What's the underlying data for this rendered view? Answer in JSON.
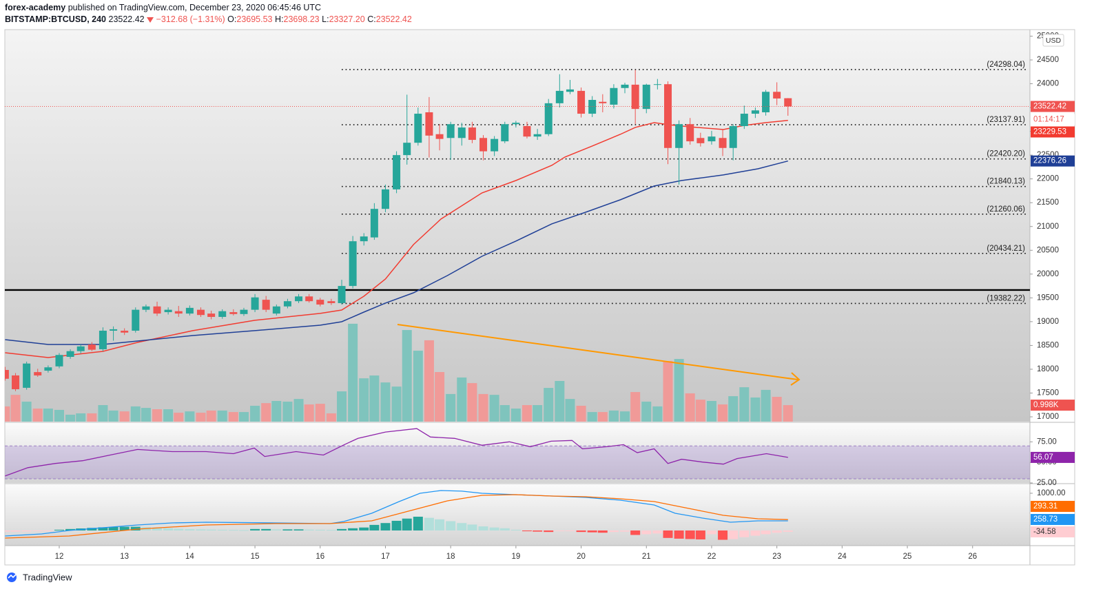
{
  "header": {
    "author": "forex-academy",
    "published": "published on TradingView.com, December 23, 2020 06:45:46 UTC",
    "symbol": "BITSTAMP:BTCUSD, 240",
    "price": "23522.42",
    "change": "−312.68 (−1.31%)",
    "o": "O:",
    "open": "23695.53",
    "h": "H:",
    "high": "23698.23",
    "l": "L:",
    "low": "23327.20",
    "c": "C:",
    "close": "23522.42",
    "currency": "USD",
    "countdown": "01:14:17",
    "brand": "TradingView"
  },
  "chart_data": [
    {
      "type": "candlestick",
      "x": [
        11.17,
        11.33,
        11.5,
        11.67,
        11.83,
        12,
        12.17,
        12.33,
        12.5,
        12.67,
        12.83,
        13,
        13.17,
        13.33,
        13.5,
        13.67,
        13.83,
        14,
        14.17,
        14.33,
        14.5,
        14.67,
        14.83,
        15,
        15.17,
        15.33,
        15.5,
        15.67,
        15.83,
        16,
        16.17,
        16.33,
        16.5,
        16.67,
        16.83,
        17,
        17.17,
        17.33,
        17.5,
        17.67,
        17.83,
        18,
        18.17,
        18.33,
        18.5,
        18.67,
        18.83,
        19,
        19.17,
        19.33,
        19.5,
        19.67,
        19.83,
        20,
        20.17,
        20.33,
        20.5,
        20.67,
        20.83,
        21,
        21.17,
        21.33,
        21.5,
        21.67,
        21.83,
        22,
        22.17,
        22.33,
        22.5,
        22.67,
        22.83,
        23,
        23.17
      ],
      "open": [
        17985,
        17870,
        17610,
        17940,
        17970,
        18060,
        18260,
        18380,
        18520,
        18420,
        18810,
        18810,
        18810,
        19250,
        19320,
        19200,
        19220,
        19170,
        19250,
        19170,
        19100,
        19200,
        19160,
        19250,
        19460,
        19170,
        19320,
        19430,
        19530,
        19460,
        19430,
        19390,
        19750,
        20690,
        20770,
        21370,
        21780,
        22500,
        22760,
        23400,
        22940,
        22860,
        22860,
        23080,
        22860,
        22580,
        22790,
        23150,
        23110,
        22890,
        22940,
        23590,
        23830,
        23850,
        23370,
        23620,
        23560,
        23910,
        23980,
        23470,
        23980,
        23990,
        22650,
        23150,
        22860,
        22790,
        22860,
        22650,
        23110,
        23370,
        23400,
        23830,
        23695.53
      ],
      "high": [
        18050,
        17920,
        18160,
        18010,
        18080,
        18340,
        18420,
        18520,
        18570,
        18880,
        18900,
        18860,
        19300,
        19360,
        19420,
        19300,
        19330,
        19340,
        19300,
        19230,
        19260,
        19260,
        19290,
        19580,
        19540,
        19360,
        19480,
        19580,
        19580,
        19500,
        19480,
        19880,
        20800,
        20860,
        21490,
        21880,
        22580,
        23770,
        23500,
        23720,
        23150,
        23200,
        23180,
        23200,
        22920,
        22900,
        23200,
        23220,
        23200,
        23050,
        23680,
        24200,
        24080,
        23920,
        23740,
        23780,
        23990,
        24020,
        24290,
        24000,
        24100,
        24050,
        23230,
        23280,
        22970,
        23010,
        23030,
        23150,
        23540,
        23500,
        23870,
        24030,
        23698.23
      ],
      "low": [
        17760,
        17540,
        17570,
        17840,
        17930,
        18020,
        18220,
        18330,
        18380,
        18380,
        18600,
        18720,
        18770,
        19200,
        19120,
        19150,
        19100,
        19130,
        19100,
        19050,
        19060,
        19130,
        19120,
        19200,
        19200,
        19130,
        19280,
        19390,
        19400,
        19320,
        19350,
        19360,
        19700,
        20600,
        20720,
        21300,
        21700,
        22300,
        22700,
        22450,
        22600,
        22400,
        22700,
        22750,
        22390,
        22480,
        22750,
        23080,
        22850,
        22820,
        22900,
        23500,
        23780,
        23290,
        23300,
        23400,
        23480,
        23800,
        23150,
        23380,
        23880,
        22310,
        21880,
        22720,
        22680,
        22720,
        22480,
        22390,
        23050,
        23280,
        23330,
        23550,
        23327.2
      ],
      "close": [
        17800,
        17580,
        18120,
        17870,
        18040,
        18300,
        18380,
        18480,
        18410,
        18810,
        18840,
        18770,
        19250,
        19320,
        19170,
        19250,
        19170,
        19290,
        19140,
        19100,
        19220,
        19160,
        19250,
        19510,
        19250,
        19320,
        19430,
        19530,
        19430,
        19360,
        19390,
        19750,
        20690,
        20790,
        21370,
        21780,
        22500,
        22760,
        23370,
        22910,
        22840,
        23150,
        23080,
        22820,
        22580,
        22840,
        23150,
        23180,
        22890,
        22940,
        23590,
        23850,
        23880,
        23370,
        23660,
        23590,
        23910,
        23980,
        23470,
        23980,
        23990,
        22650,
        23150,
        22790,
        22750,
        22890,
        22650,
        23110,
        23370,
        23440,
        23830,
        23690,
        23522.42
      ],
      "volume": [
        920,
        1620,
        1210,
        790,
        790,
        710,
        420,
        500,
        500,
        1000,
        670,
        620,
        920,
        830,
        750,
        750,
        540,
        620,
        540,
        670,
        670,
        580,
        580,
        960,
        1120,
        1250,
        1210,
        1370,
        1040,
        1080,
        500,
        1830,
        5920,
        2620,
        2790,
        2370,
        2120,
        5540,
        4290,
        4920,
        3000,
        1670,
        2670,
        2330,
        1670,
        1620,
        1000,
        790,
        1000,
        1000,
        2040,
        2460,
        1370,
        960,
        580,
        580,
        670,
        620,
        1790,
        1210,
        920,
        3670,
        3790,
        1710,
        1330,
        1250,
        1040,
        1540,
        2080,
        1460,
        1920,
        1500,
        998
      ],
      "volume_value_label": "0.998K",
      "up_color": "#26a69a",
      "down_color": "#ef5350",
      "volume_up_color": "#7fc4bd",
      "volume_down_color": "#f09a98",
      "series": [
        {
          "color": "#f23b30",
          "x": [
            11.17,
            11.83,
            12.67,
            13.2,
            14.05,
            15,
            16,
            16.33,
            16.67,
            17,
            17.43,
            17.85,
            18.48,
            19,
            19.55,
            19.75,
            20.17,
            20.6,
            20.83,
            21.12,
            21.33,
            21.65,
            22.18,
            22.5,
            22.83,
            23.17
          ],
          "values": [
            18347,
            18246,
            18376,
            18564,
            18811,
            19028,
            19173,
            19245,
            19534,
            19896,
            20620,
            21156,
            21706,
            21967,
            22285,
            22459,
            22691,
            22937,
            23082,
            23183,
            23140,
            23096,
            23038,
            23125,
            23183,
            23229.53
          ]
        },
        {
          "color": "#1f3f96",
          "x": [
            11.17,
            11.83,
            12.67,
            13.2,
            14.05,
            15,
            16,
            16.33,
            16.67,
            17,
            17.43,
            17.95,
            18.48,
            19,
            19.55,
            20.07,
            20.6,
            21.12,
            21.54,
            22.18,
            22.71,
            23.17
          ],
          "values": [
            18622,
            18521,
            18521,
            18593,
            18709,
            18811,
            18926,
            18999,
            19201,
            19390,
            19607,
            19969,
            20374,
            20693,
            21055,
            21301,
            21561,
            21851,
            21967,
            22083,
            22213,
            22376.26
          ]
        }
      ],
      "levels": [
        {
          "value": 24298.04,
          "label": "(24298.04)"
        },
        {
          "value": 23137.91,
          "label": "(23137.91)"
        },
        {
          "value": 22420.2,
          "label": "(22420.20)"
        },
        {
          "value": 21840.13,
          "label": "(21840.13)"
        },
        {
          "value": 21260.06,
          "label": "(21260.06)"
        },
        {
          "value": 20434.21,
          "label": "(20434.21)"
        },
        {
          "value": 19382.22,
          "label": "(19382.22)"
        }
      ],
      "levels_start": 16.33,
      "hline": 19665,
      "xlim": [
        11.166,
        26.879
      ],
      "xticks": [
        12,
        13,
        14,
        15,
        16,
        17,
        18,
        19,
        20,
        21,
        22,
        23,
        24,
        25,
        26
      ],
      "ylim": [
        16899,
        25137
      ],
      "yticks": [
        17000,
        17500,
        18000,
        18500,
        19000,
        19500,
        20000,
        20500,
        21000,
        21500,
        22000,
        22500,
        23000,
        23500,
        24000,
        24500,
        25000
      ]
    },
    {
      "type": "line",
      "color": "#8e24aa",
      "band": [
        30,
        70
      ],
      "x": [
        11.17,
        11.52,
        11.94,
        12.36,
        12.78,
        13.2,
        13.73,
        14.25,
        14.67,
        14.99,
        15.15,
        15.63,
        16.05,
        16.37,
        16.58,
        17,
        17.48,
        17.69,
        18.06,
        18.48,
        18.9,
        19.22,
        19.54,
        19.86,
        20.02,
        20.39,
        20.65,
        20.86,
        21.12,
        21.33,
        21.54,
        21.86,
        22.18,
        22.39,
        22.84,
        23.17
      ],
      "values": [
        33.5,
        43.6,
        48.7,
        52.1,
        58.9,
        65.7,
        63.1,
        63.1,
        60.6,
        67.4,
        57.2,
        63.1,
        58.9,
        71.6,
        79.2,
        86.9,
        91.1,
        80.9,
        79.2,
        70.8,
        75,
        69.1,
        75.8,
        76.7,
        66.5,
        69.1,
        71.6,
        61.9,
        66.5,
        48.7,
        53.8,
        50.4,
        47.9,
        54.7,
        60.6,
        56.07
      ],
      "ylim": [
        25,
        97.9
      ],
      "yticks": [
        {
          "value": 25,
          "label": "25.00"
        },
        {
          "value": 50,
          "label": "50.00"
        },
        {
          "value": 75,
          "label": "75.00"
        }
      ]
    },
    {
      "type": "macd",
      "series": [
        {
          "color": "#2196f3",
          "x": [
            11.17,
            11.73,
            12.15,
            12.67,
            13.2,
            13.73,
            14.25,
            15.31,
            16.15,
            16.36,
            16.79,
            17.21,
            17.53,
            17.85,
            18.17,
            18.48,
            19,
            19.55,
            20.07,
            20.6,
            21.12,
            21.44,
            21.86,
            22.29,
            22.71,
            23.17
          ],
          "values": [
            -148,
            -93,
            0,
            74,
            148,
            204,
            222,
            204,
            185,
            241,
            463,
            778,
            1000,
            1074,
            1056,
            1000,
            963,
            926,
            889,
            815,
            685,
            463,
            333,
            222,
            259,
            258.73
          ]
        },
        {
          "color": "#ff6d00",
          "x": [
            11.17,
            12.15,
            13.2,
            14.25,
            15.31,
            16.15,
            16.79,
            17.43,
            17.95,
            18.48,
            19,
            19.55,
            20.07,
            20.6,
            21.12,
            21.65,
            22.18,
            22.71,
            23.17
          ],
          "values": [
            -204,
            -148,
            37,
            148,
            185,
            185,
            259,
            556,
            796,
            944,
            963,
            926,
            907,
            852,
            778,
            593,
            407,
            315,
            293.31
          ]
        }
      ],
      "histogram": [
        -30,
        -30,
        -25,
        -10,
        -8,
        20,
        40,
        55,
        70,
        85,
        95,
        100,
        100,
        90,
        80,
        60,
        45,
        35,
        30,
        25,
        20,
        15,
        10,
        40,
        40,
        30,
        30,
        30,
        25,
        20,
        15,
        40,
        60,
        80,
        150,
        200,
        260,
        320,
        370,
        340,
        300,
        250,
        200,
        160,
        110,
        80,
        60,
        20,
        -20,
        -30,
        -40,
        -20,
        -10,
        -40,
        -50,
        -60,
        -40,
        -30,
        -120,
        -100,
        -80,
        -200,
        -220,
        -230,
        -240,
        -100,
        -250,
        -230,
        -180,
        -140,
        -100,
        -60,
        -34.58
      ],
      "histogram_colors": [
        "#26a69a",
        "#b2dfdb",
        "#ff5252",
        "#ffcdd2"
      ],
      "ylim": [
        -407,
        1240
      ],
      "yticks": [
        {
          "value": 1000,
          "label": "1000.00"
        }
      ]
    }
  ]
}
